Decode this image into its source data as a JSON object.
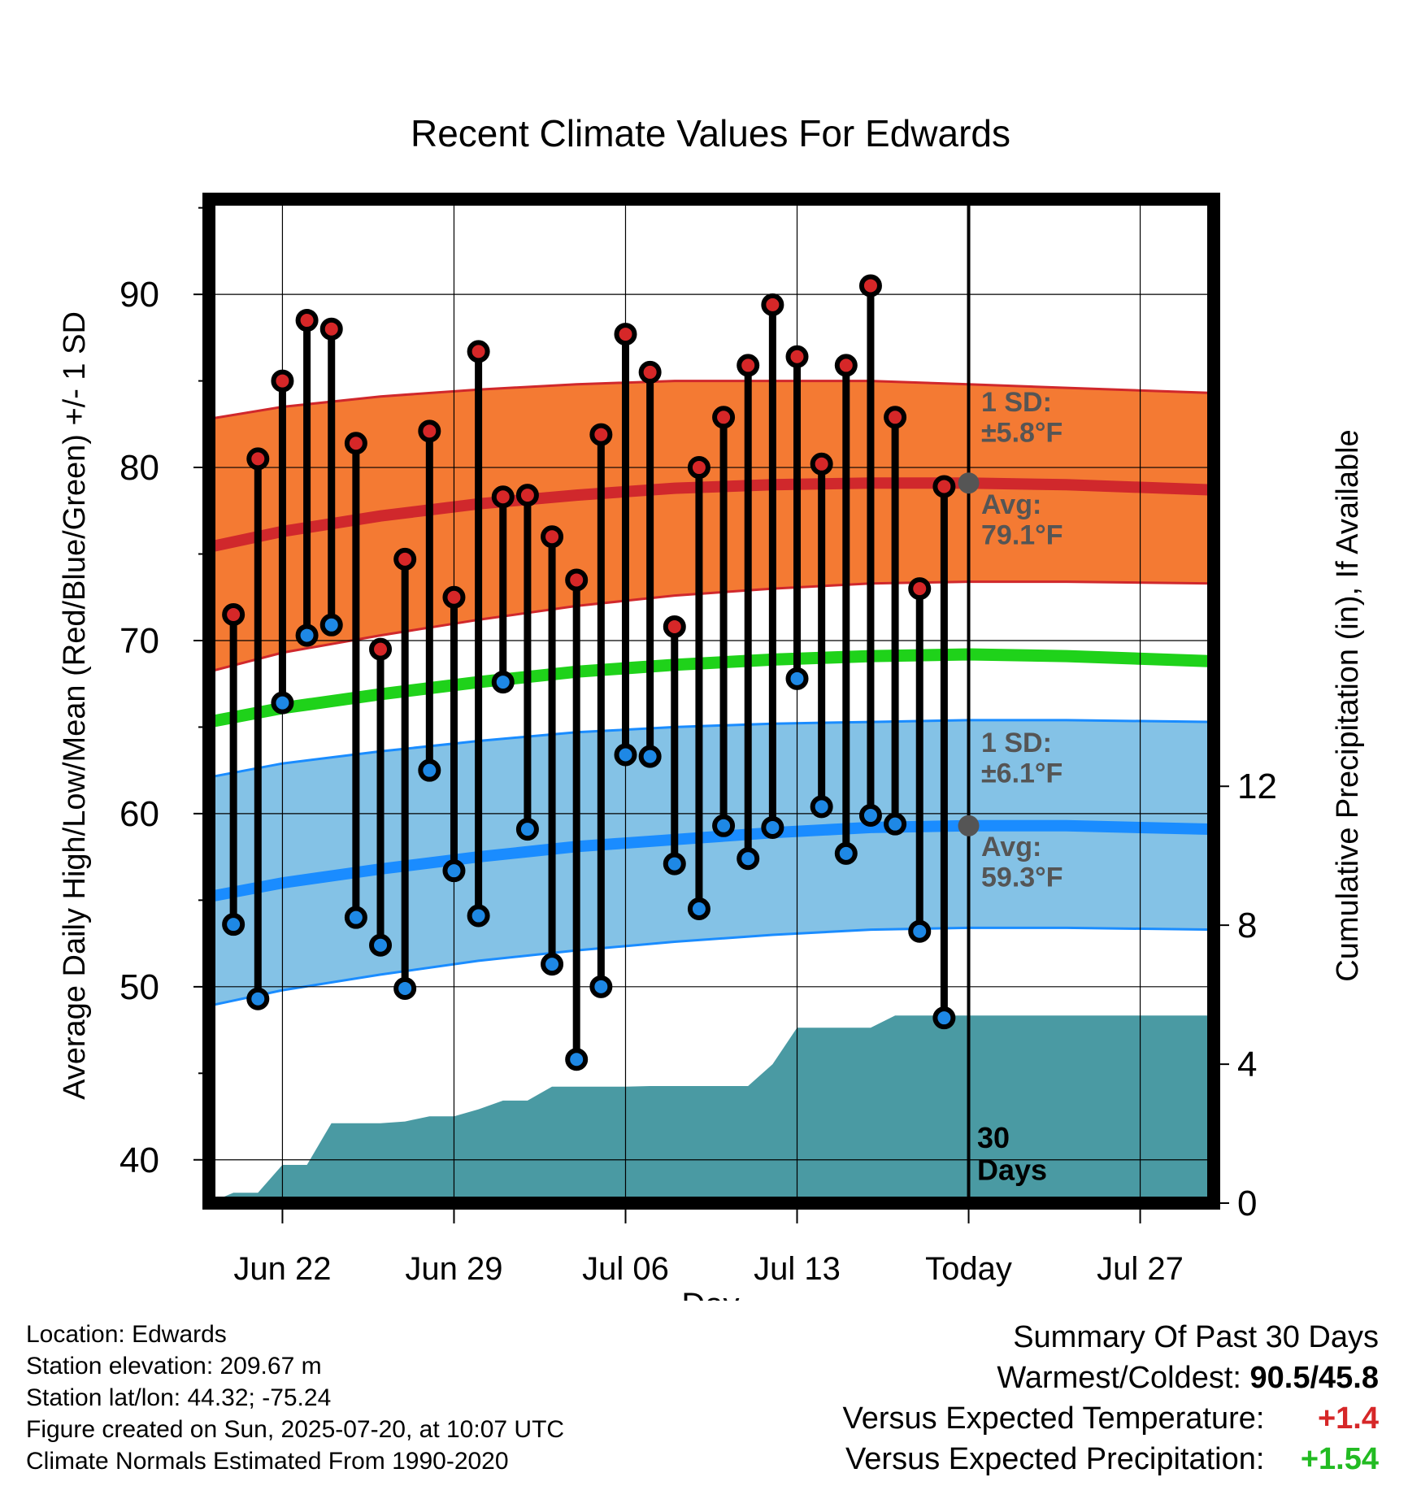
{
  "title": "Recent Climate Values For Edwards",
  "chart_data": {
    "type": "line",
    "title": "Recent Climate Values For Edwards",
    "xlabel": "Day",
    "ylabel": "Average Daily High/Low/Mean (Red/Blue/Green) +/- 1 SD",
    "y2label": "Cumulative Precipitation (in), If Available",
    "ylim": [
      37.5,
      95.5
    ],
    "y2lim": [
      0,
      28.9
    ],
    "y_ticks": [
      40,
      50,
      60,
      70,
      80,
      90
    ],
    "y2_ticks": [
      0,
      4,
      8,
      12
    ],
    "x_start": "2025-06-19",
    "x_end": "2025-07-30",
    "x_ticks": [
      {
        "date": "2025-06-22",
        "label": "Jun 22"
      },
      {
        "date": "2025-06-29",
        "label": "Jun 29"
      },
      {
        "date": "2025-07-06",
        "label": "Jul 06"
      },
      {
        "date": "2025-07-13",
        "label": "Jul 13"
      },
      {
        "date": "2025-07-20",
        "label": "Today"
      },
      {
        "date": "2025-07-27",
        "label": "Jul 27"
      }
    ],
    "today": "2025-07-20",
    "days_label": "30\nDays",
    "grid": true,
    "normals": {
      "dates": [
        "2025-06-19",
        "2025-06-22",
        "2025-06-26",
        "2025-06-30",
        "2025-07-04",
        "2025-07-08",
        "2025-07-12",
        "2025-07-16",
        "2025-07-20",
        "2025-07-24",
        "2025-07-30"
      ],
      "high_avg": [
        75.4,
        76.3,
        77.2,
        77.9,
        78.4,
        78.8,
        79.0,
        79.1,
        79.1,
        79.0,
        78.7
      ],
      "high_upper": [
        82.8,
        83.5,
        84.1,
        84.5,
        84.8,
        85.0,
        85.0,
        85.0,
        84.8,
        84.6,
        84.3
      ],
      "high_lower": [
        68.2,
        69.3,
        70.3,
        71.2,
        72.0,
        72.6,
        73.0,
        73.3,
        73.4,
        73.4,
        73.3
      ],
      "mean": [
        65.3,
        66.1,
        66.9,
        67.6,
        68.2,
        68.6,
        68.9,
        69.1,
        69.2,
        69.1,
        68.8
      ],
      "low_avg": [
        55.2,
        56.0,
        56.8,
        57.5,
        58.1,
        58.5,
        58.9,
        59.2,
        59.3,
        59.3,
        59.1
      ],
      "low_upper": [
        62.1,
        62.9,
        63.6,
        64.2,
        64.7,
        65.0,
        65.2,
        65.3,
        65.4,
        65.4,
        65.3
      ],
      "low_lower": [
        48.9,
        49.8,
        50.7,
        51.5,
        52.1,
        52.6,
        53.0,
        53.3,
        53.4,
        53.4,
        53.3
      ]
    },
    "observed": {
      "dates": [
        "2025-06-20",
        "2025-06-21",
        "2025-06-22",
        "2025-06-23",
        "2025-06-24",
        "2025-06-25",
        "2025-06-26",
        "2025-06-27",
        "2025-06-28",
        "2025-06-29",
        "2025-06-30",
        "2025-07-01",
        "2025-07-02",
        "2025-07-03",
        "2025-07-04",
        "2025-07-05",
        "2025-07-06",
        "2025-07-07",
        "2025-07-08",
        "2025-07-09",
        "2025-07-10",
        "2025-07-11",
        "2025-07-12",
        "2025-07-13",
        "2025-07-14",
        "2025-07-15",
        "2025-07-16",
        "2025-07-17",
        "2025-07-18",
        "2025-07-19"
      ],
      "highs": [
        71.5,
        80.5,
        85.0,
        88.5,
        88.0,
        81.4,
        69.5,
        74.7,
        82.1,
        72.5,
        86.7,
        78.3,
        78.4,
        76.0,
        73.5,
        81.9,
        87.7,
        85.5,
        70.8,
        80.0,
        82.9,
        85.9,
        89.4,
        86.4,
        80.2,
        85.9,
        90.5,
        82.9,
        73.0,
        78.9
      ],
      "lows": [
        53.6,
        49.3,
        66.4,
        70.3,
        70.9,
        54.0,
        52.4,
        49.9,
        62.5,
        56.7,
        54.1,
        67.6,
        59.1,
        51.3,
        45.8,
        50.0,
        63.4,
        63.3,
        57.1,
        54.5,
        59.3,
        57.4,
        59.2,
        67.8,
        60.4,
        57.7,
        59.9,
        59.4,
        53.2,
        48.2
      ]
    },
    "precip": {
      "dates": [
        "2025-06-19",
        "2025-06-19",
        "2025-06-20",
        "2025-06-21",
        "2025-06-22",
        "2025-06-23",
        "2025-06-24",
        "2025-06-25",
        "2025-06-26",
        "2025-06-27",
        "2025-06-28",
        "2025-06-29",
        "2025-06-30",
        "2025-07-01",
        "2025-07-02",
        "2025-07-03",
        "2025-07-04",
        "2025-07-05",
        "2025-07-06",
        "2025-07-07",
        "2025-07-08",
        "2025-07-09",
        "2025-07-10",
        "2025-07-11",
        "2025-07-12",
        "2025-07-13",
        "2025-07-14",
        "2025-07-15",
        "2025-07-16",
        "2025-07-17",
        "2025-07-18",
        "2025-07-19",
        "2025-07-20",
        "2025-07-30"
      ],
      "values": [
        0.0,
        0.0,
        0.3,
        0.3,
        1.1,
        1.1,
        2.3,
        2.3,
        2.3,
        2.35,
        2.5,
        2.5,
        2.7,
        2.95,
        2.95,
        3.35,
        3.35,
        3.35,
        3.35,
        3.37,
        3.37,
        3.37,
        3.37,
        3.37,
        4.0,
        5.05,
        5.05,
        5.05,
        5.05,
        5.4,
        5.4,
        5.4,
        5.4,
        5.4
      ]
    },
    "annotations": {
      "high_sd": "1 SD:\n±5.8°F",
      "high_avg": "Avg:\n79.1°F",
      "low_sd": "1 SD:\n±6.1°F",
      "low_avg": "Avg:\n59.3°F"
    },
    "colors": {
      "high_band": "#f47a33",
      "high_line": "#d0282c",
      "mean_line": "#1fd21a",
      "low_band": "#84c2e6",
      "low_line": "#1a8cff",
      "precip": "#4a9aa3",
      "high_dot": "#d62728",
      "low_dot": "#1e88e5",
      "today_marker": "#555555",
      "annotation_text": "#555555"
    }
  },
  "footer": {
    "location": "Location: Edwards",
    "elevation": "Station elevation: 209.67 m",
    "latlon": "Station lat/lon: 44.32; -75.24",
    "created": "Figure created on Sun, 2025-07-20, at 10:07 UTC",
    "normals": "Climate Normals Estimated From 1990-2020"
  },
  "summary": {
    "title": "Summary Of Past 30 Days",
    "warm_cold_label": "Warmest/Coldest:",
    "warm_cold_value": "90.5/45.8",
    "temp_label": "Versus Expected Temperature:",
    "temp_value": "+1.4",
    "precip_label": "Versus Expected Precipitation:",
    "precip_value": "+1.54"
  }
}
